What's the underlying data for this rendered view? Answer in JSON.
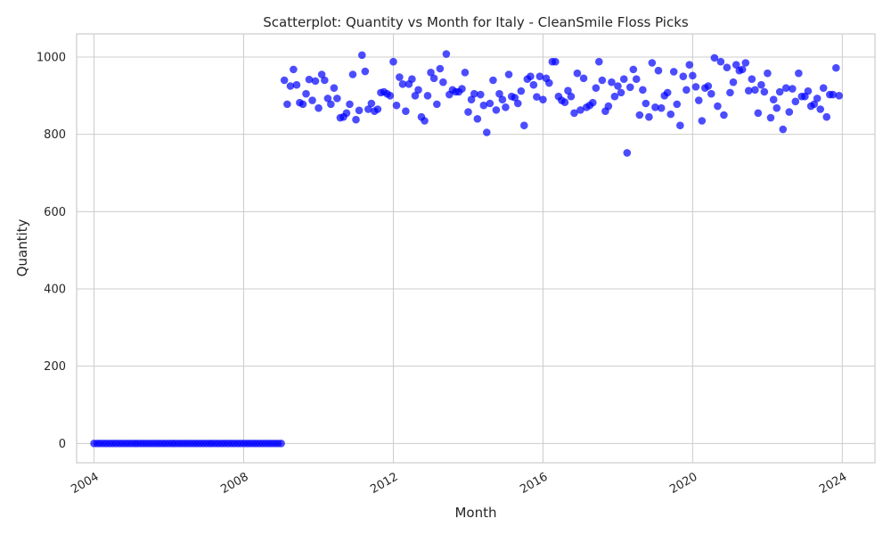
{
  "chart_data": {
    "type": "scatter",
    "title": "Scatterplot: Quantity vs Month for Italy - CleanSmile Floss Picks",
    "xlabel": "Month",
    "ylabel": "Quantity",
    "x_ticks": [
      "2004",
      "2008",
      "2012",
      "2016",
      "2020",
      "2024"
    ],
    "y_ticks": [
      0,
      200,
      400,
      600,
      800,
      1000
    ],
    "xlim": [
      "2003-07-15",
      "2024-11-15"
    ],
    "ylim": [
      -50,
      1060
    ],
    "grid": true,
    "point_color": "#0000ff",
    "x": [
      "2004-01",
      "2004-02",
      "2004-03",
      "2004-04",
      "2004-05",
      "2004-06",
      "2004-07",
      "2004-08",
      "2004-09",
      "2004-10",
      "2004-11",
      "2004-12",
      "2005-01",
      "2005-02",
      "2005-03",
      "2005-04",
      "2005-05",
      "2005-06",
      "2005-07",
      "2005-08",
      "2005-09",
      "2005-10",
      "2005-11",
      "2005-12",
      "2006-01",
      "2006-02",
      "2006-03",
      "2006-04",
      "2006-05",
      "2006-06",
      "2006-07",
      "2006-08",
      "2006-09",
      "2006-10",
      "2006-11",
      "2006-12",
      "2007-01",
      "2007-02",
      "2007-03",
      "2007-04",
      "2007-05",
      "2007-06",
      "2007-07",
      "2007-08",
      "2007-09",
      "2007-10",
      "2007-11",
      "2007-12",
      "2008-01",
      "2008-02",
      "2008-03",
      "2008-04",
      "2008-05",
      "2008-06",
      "2008-07",
      "2008-08",
      "2008-09",
      "2008-10",
      "2008-11",
      "2008-12",
      "2009-01",
      "2009-02",
      "2009-03",
      "2009-04",
      "2009-05",
      "2009-06",
      "2009-07",
      "2009-08",
      "2009-09",
      "2009-10",
      "2009-11",
      "2009-12",
      "2010-01",
      "2010-02",
      "2010-03",
      "2010-04",
      "2010-05",
      "2010-06",
      "2010-07",
      "2010-08",
      "2010-09",
      "2010-10",
      "2010-11",
      "2010-12",
      "2011-01",
      "2011-02",
      "2011-03",
      "2011-04",
      "2011-05",
      "2011-06",
      "2011-07",
      "2011-08",
      "2011-09",
      "2011-10",
      "2011-11",
      "2011-12",
      "2012-01",
      "2012-02",
      "2012-03",
      "2012-04",
      "2012-05",
      "2012-06",
      "2012-07",
      "2012-08",
      "2012-09",
      "2012-10",
      "2012-11",
      "2012-12",
      "2013-01",
      "2013-02",
      "2013-03",
      "2013-04",
      "2013-05",
      "2013-06",
      "2013-07",
      "2013-08",
      "2013-09",
      "2013-10",
      "2013-11",
      "2013-12",
      "2014-01",
      "2014-02",
      "2014-03",
      "2014-04",
      "2014-05",
      "2014-06",
      "2014-07",
      "2014-08",
      "2014-09",
      "2014-10",
      "2014-11",
      "2014-12",
      "2015-01",
      "2015-02",
      "2015-03",
      "2015-04",
      "2015-05",
      "2015-06",
      "2015-07",
      "2015-08",
      "2015-09",
      "2015-10",
      "2015-11",
      "2015-12",
      "2016-01",
      "2016-02",
      "2016-03",
      "2016-04",
      "2016-05",
      "2016-06",
      "2016-07",
      "2016-08",
      "2016-09",
      "2016-10",
      "2016-11",
      "2016-12",
      "2017-01",
      "2017-02",
      "2017-03",
      "2017-04",
      "2017-05",
      "2017-06",
      "2017-07",
      "2017-08",
      "2017-09",
      "2017-10",
      "2017-11",
      "2017-12",
      "2018-01",
      "2018-02",
      "2018-03",
      "2018-04",
      "2018-05",
      "2018-06",
      "2018-07",
      "2018-08",
      "2018-09",
      "2018-10",
      "2018-11",
      "2018-12",
      "2019-01",
      "2019-02",
      "2019-03",
      "2019-04",
      "2019-05",
      "2019-06",
      "2019-07",
      "2019-08",
      "2019-09",
      "2019-10",
      "2019-11",
      "2019-12",
      "2020-01",
      "2020-02",
      "2020-03",
      "2020-04",
      "2020-05",
      "2020-06",
      "2020-07",
      "2020-08",
      "2020-09",
      "2020-10",
      "2020-11",
      "2020-12",
      "2021-01",
      "2021-02",
      "2021-03",
      "2021-04",
      "2021-05",
      "2021-06",
      "2021-07",
      "2021-08",
      "2021-09",
      "2021-10",
      "2021-11",
      "2021-12",
      "2022-01",
      "2022-02",
      "2022-03",
      "2022-04",
      "2022-05",
      "2022-06",
      "2022-07",
      "2022-08",
      "2022-09",
      "2022-10",
      "2022-11",
      "2022-12",
      "2023-01",
      "2023-02",
      "2023-03",
      "2023-04",
      "2023-05",
      "2023-06",
      "2023-07",
      "2023-08",
      "2023-09",
      "2023-10",
      "2023-11",
      "2023-12"
    ],
    "y": [
      0,
      0,
      0,
      0,
      0,
      0,
      0,
      0,
      0,
      0,
      0,
      0,
      0,
      0,
      0,
      0,
      0,
      0,
      0,
      0,
      0,
      0,
      0,
      0,
      0,
      0,
      0,
      0,
      0,
      0,
      0,
      0,
      0,
      0,
      0,
      0,
      0,
      0,
      0,
      0,
      0,
      0,
      0,
      0,
      0,
      0,
      0,
      0,
      0,
      0,
      0,
      0,
      0,
      0,
      0,
      0,
      0,
      0,
      0,
      0,
      0,
      940,
      878,
      925,
      968,
      928,
      882,
      878,
      905,
      942,
      888,
      938,
      868,
      955,
      940,
      893,
      878,
      920,
      893,
      843,
      845,
      855,
      878,
      955,
      838,
      862,
      1005,
      963,
      865,
      880,
      860,
      865,
      908,
      910,
      905,
      900,
      988,
      875,
      948,
      930,
      860,
      930,
      943,
      900,
      915,
      845,
      835,
      900,
      960,
      945,
      878,
      970,
      935,
      1008,
      903,
      915,
      910,
      910,
      918,
      960,
      858,
      890,
      905,
      840,
      903,
      875,
      805,
      880,
      940,
      863,
      905,
      890,
      870,
      955,
      898,
      895,
      880,
      912,
      823,
      943,
      950,
      928,
      897,
      950,
      890,
      945,
      933,
      988,
      988,
      898,
      888,
      883,
      913,
      898,
      855,
      958,
      863,
      945,
      870,
      875,
      882,
      920,
      988,
      940,
      860,
      873,
      935,
      898,
      925,
      908,
      943,
      752,
      922,
      968,
      943,
      850,
      915,
      880,
      845,
      985,
      870,
      965,
      868,
      900,
      908,
      852,
      962,
      878,
      823,
      950,
      915,
      980,
      952,
      923,
      888,
      835,
      920,
      925,
      905,
      998,
      873,
      988,
      850,
      973,
      908,
      935,
      980,
      965,
      968,
      985,
      913,
      943,
      915,
      855,
      928,
      910,
      958,
      843,
      890,
      868,
      910,
      813,
      920,
      858,
      918,
      885,
      958,
      898,
      898,
      912,
      873,
      878,
      893,
      865,
      920,
      845,
      903,
      903,
      972,
      900
    ]
  }
}
